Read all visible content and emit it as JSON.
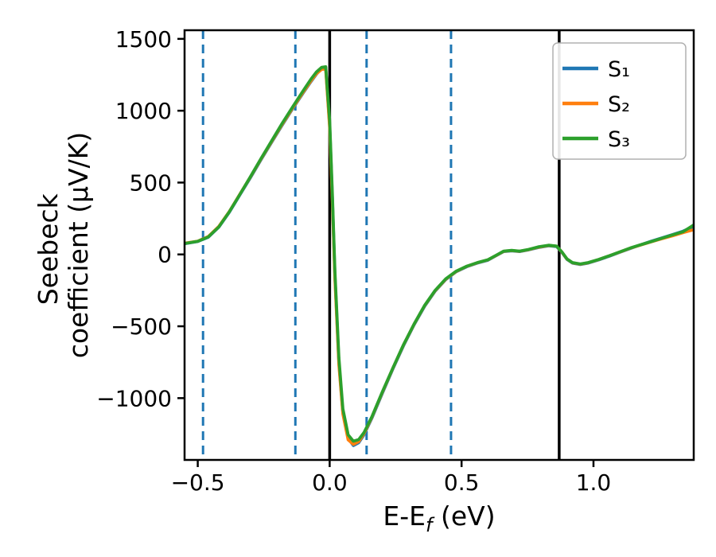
{
  "figure": {
    "background": "#ffffff"
  },
  "chart_data": {
    "type": "line",
    "title": "",
    "xlabel": "E-Ef (eV)",
    "xlabel_parts": [
      "E-E",
      "f",
      " (eV)"
    ],
    "ylabel": "Seebeck coefficient (μV/K)",
    "ylabel_lines": [
      "Seebeck",
      "coefficient  (μV/K)"
    ],
    "xlim": [
      -0.55,
      1.38
    ],
    "ylim": [
      -1430,
      1560
    ],
    "xtick_values": [
      -0.5,
      0.0,
      0.5,
      1.0
    ],
    "xtick_labels": [
      "−0.5",
      "0.0",
      "0.5",
      "1.0"
    ],
    "ytick_values": [
      -1000,
      -500,
      0,
      500,
      1000,
      1500
    ],
    "ytick_labels": [
      "−1000",
      "−500",
      "0",
      "500",
      "1000",
      "1500"
    ],
    "grid": false,
    "legend": {
      "position": "upper right"
    },
    "vlines": [
      {
        "x": -0.48,
        "style": "dashed",
        "color": "#1f77b4"
      },
      {
        "x": -0.13,
        "style": "dashed",
        "color": "#1f77b4"
      },
      {
        "x": 0.14,
        "style": "dashed",
        "color": "#1f77b4"
      },
      {
        "x": 0.46,
        "style": "dashed",
        "color": "#1f77b4"
      },
      {
        "x": 0.0,
        "style": "solid",
        "color": "#000000"
      },
      {
        "x": 0.87,
        "style": "solid",
        "color": "#000000"
      }
    ],
    "x": [
      -0.55,
      -0.5,
      -0.46,
      -0.42,
      -0.38,
      -0.34,
      -0.3,
      -0.26,
      -0.22,
      -0.18,
      -0.14,
      -0.1,
      -0.07,
      -0.05,
      -0.03,
      -0.015,
      0.0,
      0.01,
      0.02,
      0.035,
      0.05,
      0.07,
      0.09,
      0.11,
      0.13,
      0.16,
      0.2,
      0.24,
      0.28,
      0.32,
      0.36,
      0.4,
      0.44,
      0.48,
      0.52,
      0.56,
      0.6,
      0.63,
      0.66,
      0.69,
      0.72,
      0.75,
      0.79,
      0.83,
      0.86,
      0.88,
      0.9,
      0.92,
      0.95,
      0.98,
      1.02,
      1.06,
      1.1,
      1.14,
      1.18,
      1.22,
      1.26,
      1.3,
      1.34,
      1.38
    ],
    "series": [
      {
        "name": "S₁",
        "color": "#1f77b4",
        "y": [
          75,
          90,
          120,
          190,
          295,
          415,
          535,
          660,
          780,
          900,
          1015,
          1125,
          1205,
          1255,
          1295,
          1300,
          900,
          400,
          -150,
          -750,
          -1100,
          -1280,
          -1330,
          -1310,
          -1255,
          -1140,
          -965,
          -795,
          -635,
          -490,
          -360,
          -255,
          -175,
          -120,
          -85,
          -60,
          -40,
          -10,
          20,
          25,
          20,
          30,
          48,
          60,
          55,
          15,
          -35,
          -60,
          -70,
          -60,
          -38,
          -12,
          15,
          42,
          68,
          92,
          115,
          138,
          162,
          195
        ]
      },
      {
        "name": "S₂",
        "color": "#ff7f0e",
        "y": [
          78,
          92,
          125,
          195,
          300,
          420,
          540,
          665,
          785,
          905,
          1020,
          1130,
          1210,
          1258,
          1288,
          1290,
          880,
          380,
          -170,
          -770,
          -1110,
          -1290,
          -1322,
          -1302,
          -1248,
          -1133,
          -958,
          -790,
          -630,
          -486,
          -356,
          -252,
          -172,
          -118,
          -83,
          -58,
          -38,
          -8,
          22,
          27,
          22,
          32,
          50,
          62,
          57,
          17,
          -33,
          -58,
          -68,
          -58,
          -36,
          -10,
          17,
          44,
          66,
          88,
          110,
          130,
          152,
          172
        ]
      },
      {
        "name": "S₃",
        "color": "#2ca02c",
        "y": [
          76,
          91,
          122,
          192,
          298,
          418,
          542,
          668,
          790,
          912,
          1028,
          1140,
          1222,
          1270,
          1302,
          1306,
          930,
          430,
          -120,
          -720,
          -1075,
          -1255,
          -1300,
          -1288,
          -1240,
          -1130,
          -955,
          -788,
          -628,
          -484,
          -354,
          -250,
          -170,
          -116,
          -82,
          -57,
          -37,
          -7,
          23,
          28,
          23,
          33,
          52,
          64,
          58,
          18,
          -32,
          -57,
          -67,
          -57,
          -35,
          -9,
          18,
          45,
          68,
          90,
          113,
          136,
          158,
          205
        ]
      }
    ]
  }
}
